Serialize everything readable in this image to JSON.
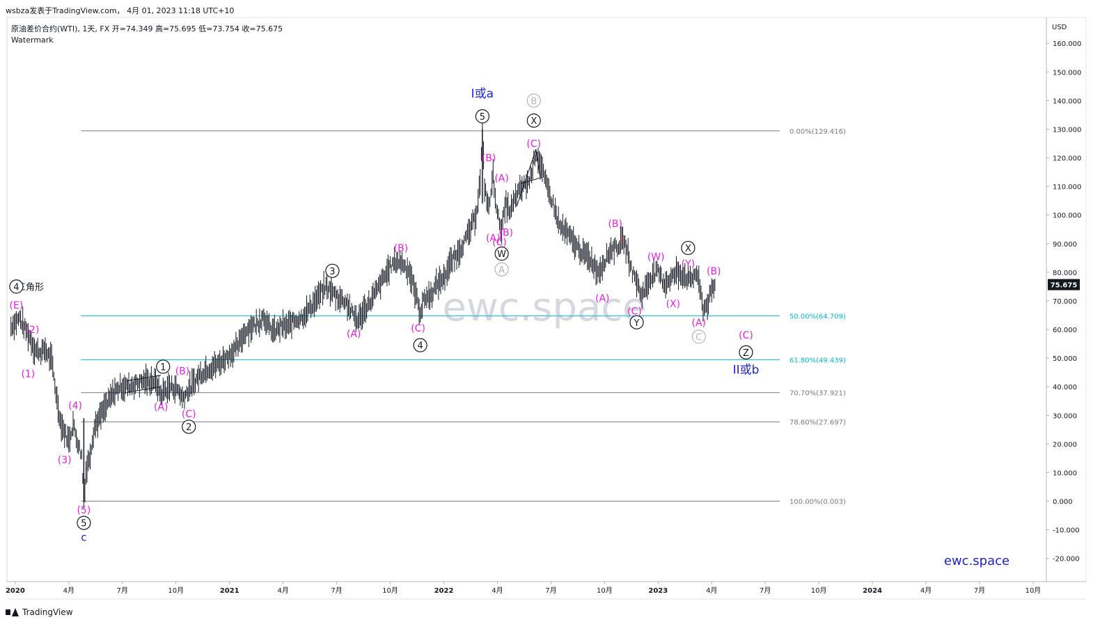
{
  "header": {
    "publisher_line": "wsbza发表于TradingView.com，  4月 01, 2023 11:18 UTC+10",
    "symbol_line": "原油差价合约(WTI), 1天, FX  开=74.349  高=75.695  低=73.754  收=75.675",
    "watermark_label": "Watermark"
  },
  "footer": {
    "brand": "TradingView"
  },
  "chart_data": {
    "type": "line",
    "currency": "USD",
    "price_axis_ticks": [
      160,
      150,
      140,
      130,
      120,
      110,
      100,
      90,
      80,
      70,
      60,
      50,
      40,
      30,
      20,
      10,
      0,
      -10,
      -20
    ],
    "price_axis_labels": [
      "160.000",
      "150.000",
      "140.000",
      "130.000",
      "120.000",
      "110.000",
      "100.000",
      "90.000",
      "80.000",
      "70.000",
      "60.000",
      "50.000",
      "40.000",
      "30.000",
      "20.000",
      "10.000",
      "0.000",
      "-10.000",
      "-20.000"
    ],
    "last_price": 75.675,
    "last_price_label": "75.675",
    "time_axis_labels": [
      "2020",
      "4月",
      "7月",
      "10月",
      "2021",
      "4月",
      "7月",
      "10月",
      "2022",
      "4月",
      "7月",
      "10月",
      "2023",
      "4月",
      "7月",
      "10月",
      "2024",
      "4月",
      "7月",
      "10月"
    ],
    "time_axis_values": [
      2020.0,
      2020.25,
      2020.5,
      2020.75,
      2021.0,
      2021.25,
      2021.5,
      2021.75,
      2022.0,
      2022.25,
      2022.5,
      2022.75,
      2023.0,
      2023.25,
      2023.5,
      2023.75,
      2024.0,
      2024.25,
      2024.5,
      2024.75
    ],
    "time_axis_bold": [
      true,
      false,
      false,
      false,
      true,
      false,
      false,
      false,
      true,
      false,
      false,
      false,
      true,
      false,
      false,
      false,
      true,
      false,
      false,
      false
    ],
    "price_path": [
      [
        2019.98,
        61
      ],
      [
        2020.02,
        64
      ],
      [
        2020.04,
        61
      ],
      [
        2020.07,
        57
      ],
      [
        2020.09,
        53
      ],
      [
        2020.12,
        52
      ],
      [
        2020.14,
        53
      ],
      [
        2020.17,
        49
      ],
      [
        2020.19,
        38
      ],
      [
        2020.21,
        28
      ],
      [
        2020.23,
        24
      ],
      [
        2020.25,
        21
      ],
      [
        2020.27,
        27
      ],
      [
        2020.29,
        21
      ],
      [
        2020.31,
        16
      ],
      [
        2020.32,
        0.5
      ],
      [
        2020.33,
        10
      ],
      [
        2020.35,
        17
      ],
      [
        2020.37,
        26
      ],
      [
        2020.4,
        30
      ],
      [
        2020.43,
        34
      ],
      [
        2020.46,
        38
      ],
      [
        2020.49,
        40
      ],
      [
        2020.52,
        40
      ],
      [
        2020.56,
        41
      ],
      [
        2020.6,
        42
      ],
      [
        2020.64,
        42
      ],
      [
        2020.66,
        41
      ],
      [
        2020.68,
        37
      ],
      [
        2020.7,
        39
      ],
      [
        2020.73,
        40
      ],
      [
        2020.76,
        39
      ],
      [
        2020.78,
        36
      ],
      [
        2020.8,
        38
      ],
      [
        2020.83,
        41
      ],
      [
        2020.86,
        44
      ],
      [
        2020.89,
        46
      ],
      [
        2020.92,
        47
      ],
      [
        2020.95,
        48
      ],
      [
        2020.98,
        50
      ],
      [
        2021.01,
        52
      ],
      [
        2021.04,
        54
      ],
      [
        2021.07,
        59
      ],
      [
        2021.1,
        61
      ],
      [
        2021.13,
        62
      ],
      [
        2021.16,
        65
      ],
      [
        2021.18,
        61
      ],
      [
        2021.21,
        59
      ],
      [
        2021.24,
        61
      ],
      [
        2021.27,
        61
      ],
      [
        2021.3,
        63
      ],
      [
        2021.33,
        64
      ],
      [
        2021.36,
        66
      ],
      [
        2021.39,
        69
      ],
      [
        2021.42,
        72
      ],
      [
        2021.45,
        75
      ],
      [
        2021.48,
        73
      ],
      [
        2021.51,
        71
      ],
      [
        2021.54,
        70
      ],
      [
        2021.57,
        66
      ],
      [
        2021.6,
        63
      ],
      [
        2021.63,
        67
      ],
      [
        2021.66,
        70
      ],
      [
        2021.69,
        74
      ],
      [
        2021.72,
        78
      ],
      [
        2021.75,
        82
      ],
      [
        2021.78,
        84
      ],
      [
        2021.81,
        83
      ],
      [
        2021.84,
        80
      ],
      [
        2021.87,
        72
      ],
      [
        2021.89,
        66
      ],
      [
        2021.91,
        71
      ],
      [
        2021.94,
        72
      ],
      [
        2021.97,
        76
      ],
      [
        2022.0,
        78
      ],
      [
        2022.03,
        83
      ],
      [
        2022.06,
        86
      ],
      [
        2022.09,
        90
      ],
      [
        2022.12,
        94
      ],
      [
        2022.15,
        100
      ],
      [
        2022.17,
        112
      ],
      [
        2022.18,
        129
      ],
      [
        2022.19,
        110
      ],
      [
        2022.21,
        102
      ],
      [
        2022.23,
        114
      ],
      [
        2022.25,
        100
      ],
      [
        2022.27,
        95
      ],
      [
        2022.29,
        104
      ],
      [
        2022.31,
        101
      ],
      [
        2022.34,
        107
      ],
      [
        2022.37,
        110
      ],
      [
        2022.4,
        112
      ],
      [
        2022.43,
        122
      ],
      [
        2022.45,
        118
      ],
      [
        2022.48,
        110
      ],
      [
        2022.51,
        104
      ],
      [
        2022.54,
        96
      ],
      [
        2022.57,
        94
      ],
      [
        2022.6,
        91
      ],
      [
        2022.63,
        88
      ],
      [
        2022.66,
        86
      ],
      [
        2022.69,
        84
      ],
      [
        2022.72,
        80
      ],
      [
        2022.75,
        84
      ],
      [
        2022.78,
        88
      ],
      [
        2022.81,
        89
      ],
      [
        2022.84,
        91
      ],
      [
        2022.86,
        86
      ],
      [
        2022.88,
        80
      ],
      [
        2022.9,
        77
      ],
      [
        2022.92,
        72
      ],
      [
        2022.94,
        74
      ],
      [
        2022.97,
        79
      ],
      [
        2023.0,
        80
      ],
      [
        2023.03,
        76
      ],
      [
        2023.06,
        78
      ],
      [
        2023.09,
        80
      ],
      [
        2023.12,
        79
      ],
      [
        2023.15,
        77
      ],
      [
        2023.18,
        80
      ],
      [
        2023.2,
        72
      ],
      [
        2023.21,
        67
      ],
      [
        2023.23,
        69
      ],
      [
        2023.25,
        73
      ],
      [
        2023.27,
        76
      ]
    ],
    "fib_levels": [
      {
        "label": "0.00%(129.416)",
        "value": 129.416,
        "color": "#787b86"
      },
      {
        "label": "50.00%(64.709)",
        "value": 64.709,
        "color": "#00bcd4"
      },
      {
        "label": "61.80%(49.439)",
        "value": 49.439,
        "color": "#00bcd4"
      },
      {
        "label": "70.70%(37.921)",
        "value": 37.921,
        "color": "#787b86"
      },
      {
        "label": "78.60%(27.697)",
        "value": 27.697,
        "color": "#787b86"
      },
      {
        "label": "100.00%(0.003)",
        "value": 0.003,
        "color": "#787b86"
      }
    ],
    "fib_start_time": 2020.32,
    "fib_end_time": 2023.6,
    "annotations": [
      {
        "text": "(E)",
        "t": 2020.005,
        "y": 68.5,
        "kind": "magenta"
      },
      {
        "text": "三角形",
        "t": 2020.07,
        "y": 75,
        "kind": "black_text"
      },
      {
        "text": "4",
        "t": 2020.005,
        "y": 75,
        "kind": "circled"
      },
      {
        "text": "(2)",
        "t": 2020.08,
        "y": 60,
        "kind": "magenta"
      },
      {
        "text": "(1)",
        "t": 2020.06,
        "y": 44.5,
        "kind": "magenta"
      },
      {
        "text": "(4)",
        "t": 2020.28,
        "y": 33.5,
        "kind": "magenta"
      },
      {
        "text": "(3)",
        "t": 2020.23,
        "y": 14.5,
        "kind": "magenta"
      },
      {
        "text": "(5)",
        "t": 2020.32,
        "y": -3,
        "kind": "magenta"
      },
      {
        "text": "5",
        "t": 2020.32,
        "y": -7.6,
        "kind": "circled"
      },
      {
        "text": "c",
        "t": 2020.32,
        "y": -12.6,
        "kind": "blue"
      },
      {
        "text": "1",
        "t": 2020.69,
        "y": 47,
        "kind": "circled"
      },
      {
        "text": "(A)",
        "t": 2020.68,
        "y": 33,
        "kind": "magenta"
      },
      {
        "text": "(B)",
        "t": 2020.78,
        "y": 45.5,
        "kind": "magenta"
      },
      {
        "text": "(C)",
        "t": 2020.81,
        "y": 30.5,
        "kind": "magenta"
      },
      {
        "text": "2",
        "t": 2020.81,
        "y": 26,
        "kind": "circled"
      },
      {
        "text": "3",
        "t": 2021.48,
        "y": 80.5,
        "kind": "circled"
      },
      {
        "text": "(A)",
        "t": 2021.58,
        "y": 58.5,
        "kind": "magenta"
      },
      {
        "text": "(B)",
        "t": 2021.8,
        "y": 88.5,
        "kind": "magenta"
      },
      {
        "text": "(C)",
        "t": 2021.88,
        "y": 60.5,
        "kind": "magenta"
      },
      {
        "text": "4",
        "t": 2021.89,
        "y": 54.5,
        "kind": "circled"
      },
      {
        "text": "I或a",
        "t": 2022.18,
        "y": 142.5,
        "kind": "blue_big"
      },
      {
        "text": "5",
        "t": 2022.18,
        "y": 134.5,
        "kind": "circled"
      },
      {
        "text": "(B)",
        "t": 2022.21,
        "y": 120,
        "kind": "magenta"
      },
      {
        "text": "(A)",
        "t": 2022.27,
        "y": 113,
        "kind": "magenta"
      },
      {
        "text": "(A)",
        "t": 2022.23,
        "y": 92,
        "kind": "magenta"
      },
      {
        "text": "(C)",
        "t": 2022.26,
        "y": 90.5,
        "kind": "magenta"
      },
      {
        "text": "(B)",
        "t": 2022.29,
        "y": 94,
        "kind": "magenta"
      },
      {
        "text": "W",
        "t": 2022.27,
        "y": 86.5,
        "kind": "circled"
      },
      {
        "text": "A",
        "t": 2022.27,
        "y": 81,
        "kind": "circled_gray"
      },
      {
        "text": "B",
        "t": 2022.42,
        "y": 140,
        "kind": "circled_gray"
      },
      {
        "text": "X",
        "t": 2022.42,
        "y": 133,
        "kind": "circled"
      },
      {
        "text": "(C)",
        "t": 2022.42,
        "y": 125,
        "kind": "magenta"
      },
      {
        "text": "(B)",
        "t": 2022.8,
        "y": 97,
        "kind": "magenta"
      },
      {
        "text": "(A)",
        "t": 2022.74,
        "y": 71,
        "kind": "magenta"
      },
      {
        "text": "(C)",
        "t": 2022.89,
        "y": 66.5,
        "kind": "magenta"
      },
      {
        "text": "Y",
        "t": 2022.9,
        "y": 62.5,
        "kind": "circled"
      },
      {
        "text": "(W)",
        "t": 2022.99,
        "y": 85.5,
        "kind": "magenta"
      },
      {
        "text": "(Y)",
        "t": 2023.14,
        "y": 83,
        "kind": "magenta"
      },
      {
        "text": "X",
        "t": 2023.14,
        "y": 88.5,
        "kind": "circled"
      },
      {
        "text": "(X)",
        "t": 2023.07,
        "y": 69,
        "kind": "magenta"
      },
      {
        "text": "(B)",
        "t": 2023.26,
        "y": 80.5,
        "kind": "magenta"
      },
      {
        "text": "(A)",
        "t": 2023.19,
        "y": 62.5,
        "kind": "magenta"
      },
      {
        "text": "C",
        "t": 2023.19,
        "y": 57.5,
        "kind": "circled_gray"
      },
      {
        "text": "(C)",
        "t": 2023.41,
        "y": 58,
        "kind": "magenta"
      },
      {
        "text": "Z",
        "t": 2023.41,
        "y": 52,
        "kind": "circled"
      },
      {
        "text": "II或b",
        "t": 2023.41,
        "y": 46,
        "kind": "blue_big"
      }
    ],
    "big_watermark": "ewc.space",
    "corner_brand": "ewc.space",
    "colors": {
      "bars": "#131722",
      "magenta": "#e91ede",
      "blue": "#1e22d6",
      "gray_circle": "#b2b5be",
      "fib_gray": "#787b86",
      "fib_cyan": "#00bcd4",
      "last_price_bg": "#131722",
      "watermark": "#d1d4dc"
    }
  }
}
